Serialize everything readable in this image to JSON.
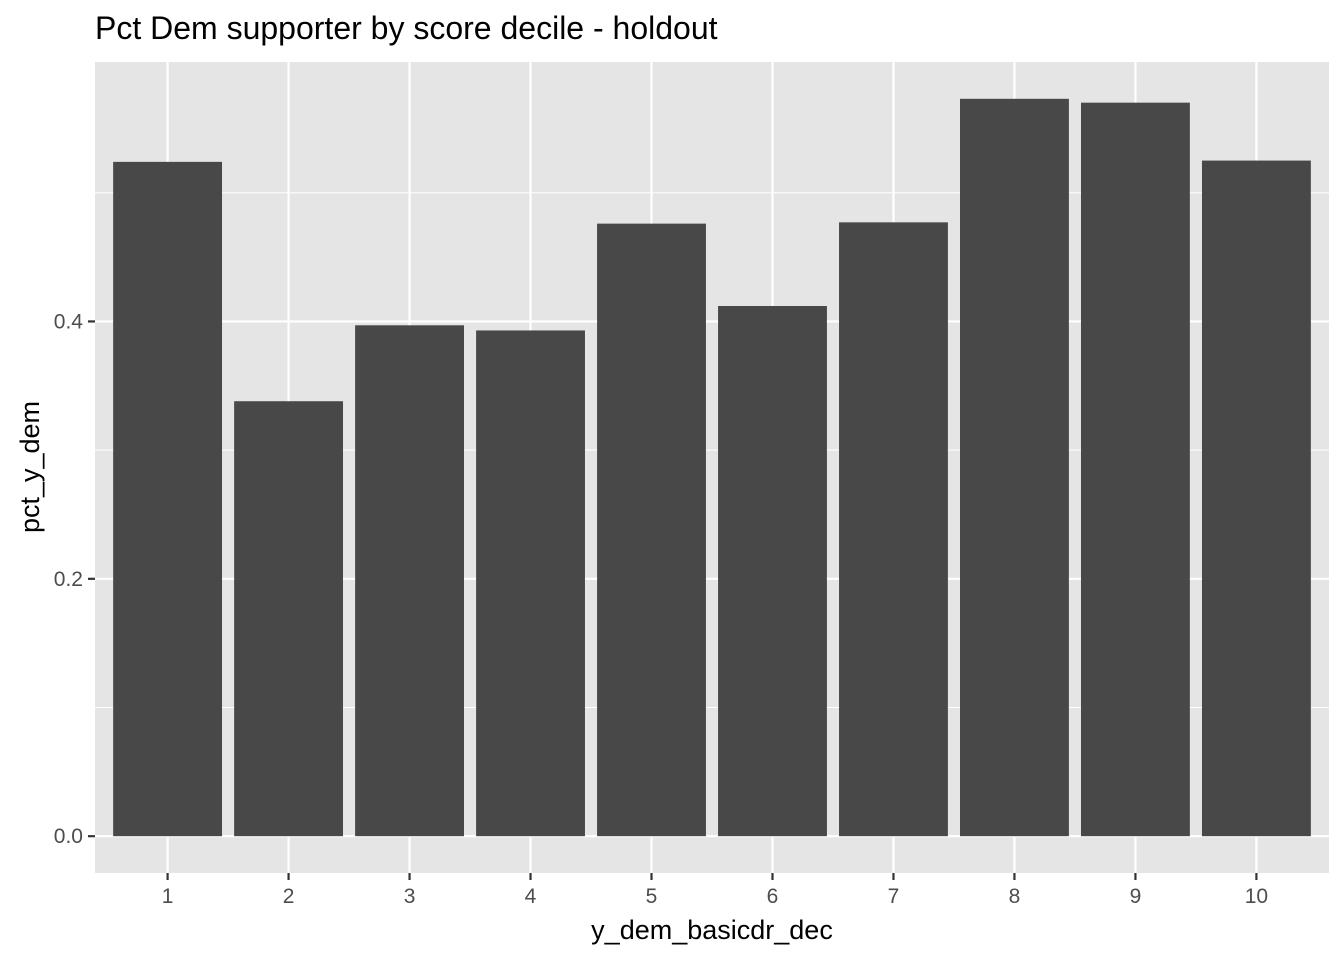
{
  "chart_data": {
    "type": "bar",
    "title": "Pct Dem supporter by score decile - holdout",
    "xlabel": "y_dem_basicdr_dec",
    "ylabel": "pct_y_dem",
    "categories": [
      "1",
      "2",
      "3",
      "4",
      "5",
      "6",
      "7",
      "8",
      "9",
      "10"
    ],
    "values": [
      0.524,
      0.338,
      0.397,
      0.393,
      0.476,
      0.412,
      0.477,
      0.573,
      0.57,
      0.525
    ],
    "ylim": [
      -0.0286,
      0.6016
    ],
    "y_ticks": [
      0.0,
      0.2,
      0.4
    ],
    "y_tick_labels": [
      "0.0",
      "0.2",
      "0.4"
    ],
    "grid": true,
    "legend": "none",
    "colors": {
      "bar": "#484848",
      "panel_background": "#e5e5e5",
      "grid": "#ffffff",
      "tick_text": "#4d4d4d"
    }
  }
}
